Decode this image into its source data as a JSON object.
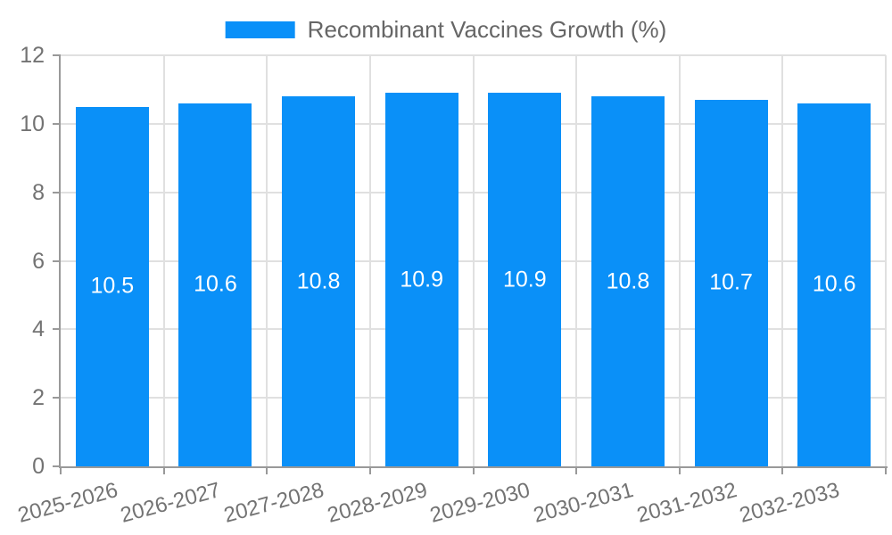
{
  "legend": {
    "label": "Recombinant Vaccines Growth (%)"
  },
  "colors": {
    "bar": "#0a90f8",
    "legend_text": "#666666",
    "tick_label": "#737373",
    "axis_line": "#999999",
    "grid_line": "#e0e0e0",
    "value_label": "#ffffff",
    "background": "#ffffff"
  },
  "chart_data": {
    "type": "bar",
    "title": "",
    "categories": [
      "2025-2026",
      "2026-2027",
      "2027-2028",
      "2028-2029",
      "2029-2030",
      "2030-2031",
      "2031-2032",
      "2032-2033"
    ],
    "series": [
      {
        "name": "Recombinant Vaccines Growth (%)",
        "values": [
          10.5,
          10.6,
          10.8,
          10.9,
          10.9,
          10.8,
          10.7,
          10.6
        ]
      }
    ],
    "bar_value_labels": [
      "10.5",
      "10.6",
      "10.8",
      "10.9",
      "10.9",
      "10.8",
      "10.7",
      "10.6"
    ],
    "xlabel": "",
    "ylabel": "",
    "ylim": [
      0,
      12
    ],
    "yticks": [
      0,
      2,
      4,
      6,
      8,
      10,
      12
    ],
    "grid": true,
    "legend_position": "top",
    "x_tick_rotation_deg": -15,
    "value_labels_inside_bars": true
  }
}
